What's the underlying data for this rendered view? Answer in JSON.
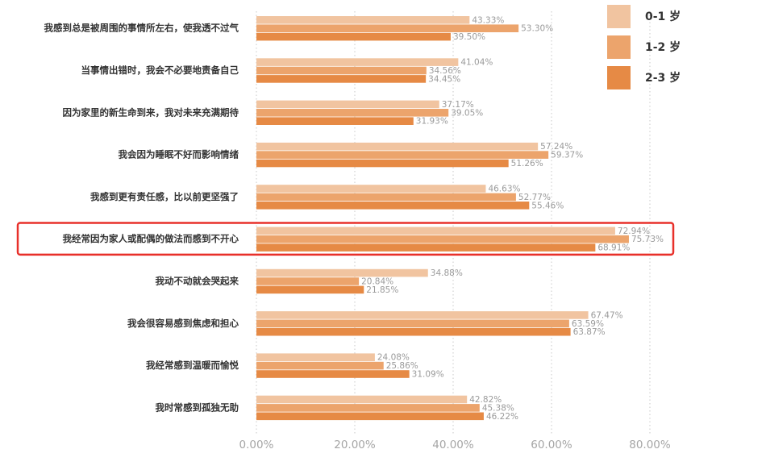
{
  "colors": {
    "series": [
      "#f1c4a0",
      "#eca46c",
      "#e68a45"
    ],
    "highlight_box": "#e8302a",
    "grid": "#c8c8c8"
  },
  "highlight_category_index": 5,
  "chart_data": {
    "type": "bar",
    "orientation": "horizontal",
    "categories": [
      "我感到总是被周围的事情所左右，使我透不过气",
      "当事情出错时，我会不必要地责备自己",
      "因为家里的新生命到来，我对未来充满期待",
      "我会因为睡眠不好而影响情绪",
      "我感到更有责任感，比以前更坚强了",
      "我经常因为家人或配偶的做法而感到不开心",
      "我动不动就会哭起来",
      "我会很容易感到焦虑和担心",
      "我经常感到温暖而愉悦",
      "我时常感到孤独无助"
    ],
    "series": [
      {
        "name": "0-1 岁",
        "values": [
          43.33,
          41.04,
          37.17,
          57.24,
          46.63,
          72.94,
          34.88,
          67.47,
          24.08,
          42.82
        ],
        "labels": [
          "43.33%",
          "41.04%",
          "37.17%",
          "57.24%",
          "46.63%",
          "72.94%",
          "34.88%",
          "67.47%",
          "24.08%",
          "42.82%"
        ]
      },
      {
        "name": "1-2 岁",
        "values": [
          53.3,
          34.56,
          39.05,
          59.37,
          52.77,
          75.73,
          20.84,
          63.59,
          25.86,
          45.38
        ],
        "labels": [
          "53.30%",
          "34.56%",
          "39.05%",
          "59.37%",
          "52.77%",
          "75.73%",
          "20.84%",
          "63.59%",
          "25.86%",
          "45.38%"
        ]
      },
      {
        "name": "2-3 岁",
        "values": [
          39.5,
          34.45,
          31.93,
          51.26,
          55.46,
          68.91,
          21.85,
          63.87,
          31.09,
          46.22
        ],
        "labels": [
          "39.50%",
          "34.45%",
          "31.93%",
          "51.26%",
          "55.46%",
          "68.91%",
          "21.85%",
          "63.87%",
          "31.09%",
          "46.22%"
        ]
      }
    ],
    "xlim": [
      0,
      80
    ],
    "xticks": [
      0,
      20,
      40,
      60,
      80
    ],
    "xtick_labels": [
      "0.00%",
      "20.00%",
      "40.00%",
      "60.00%",
      "80.00%"
    ],
    "grid": true,
    "grid_style": "dotted vertical",
    "legend_position": "top-right",
    "title": "",
    "xlabel": "",
    "ylabel": ""
  }
}
